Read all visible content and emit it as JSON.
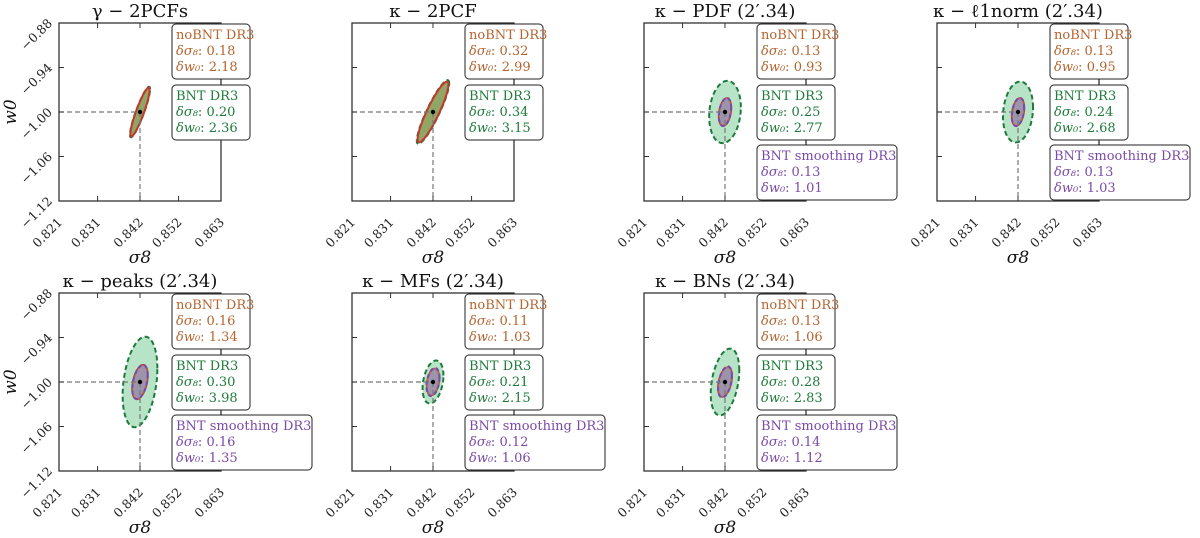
{
  "chart_data": {
    "type": "scatter",
    "subtype": "confidence-ellipses",
    "xlabel": "σ8",
    "ylabel": "w0",
    "xlim": [
      0.821,
      0.863
    ],
    "ylim": [
      -1.12,
      -0.88
    ],
    "xticks": [
      "0.821",
      "0.831",
      "0.842",
      "0.852",
      "0.863"
    ],
    "xtick_values": [
      0.821,
      0.831,
      0.842,
      0.852,
      0.863
    ],
    "yticks": [
      "−1.12",
      "−1.06",
      "−1.00",
      "−0.94",
      "−0.88"
    ],
    "ytick_values": [
      -1.12,
      -1.06,
      -1.0,
      -0.94,
      -0.88
    ],
    "fiducial": {
      "sigma8": 0.842,
      "w0": -1.0
    },
    "sigma_label": "δσ₈",
    "w0_label": "δw₀",
    "colors": {
      "noBNT": "#b5642f",
      "noBNT_edge": "#c0392b",
      "BNT": "#1e7b3c",
      "BNT_fill": "#9fd9b4",
      "smoothing": "#7a4aa8",
      "smoothing_fill": "#9b8fa8",
      "fiducial": "#777777"
    },
    "series_names": {
      "noBNT": "noBNT DR3",
      "BNT": "BNT DR3",
      "smoothing": "BNT smoothing DR3"
    },
    "panels": [
      {
        "title": "γ − 2PCFs",
        "entries": [
          {
            "key": "noBNT",
            "dsigma8": "0.18",
            "dw0": "2.18",
            "half_sigma8": 0.0025,
            "half_w0": 0.033,
            "rho": 0.9
          },
          {
            "key": "BNT",
            "dsigma8": "0.20",
            "dw0": "2.36",
            "half_sigma8": 0.0026,
            "half_w0": 0.034,
            "rho": 0.9
          }
        ]
      },
      {
        "title": "κ − 2PCF",
        "entries": [
          {
            "key": "noBNT",
            "dsigma8": "0.32",
            "dw0": "2.99",
            "half_sigma8": 0.004,
            "half_w0": 0.041,
            "rho": 0.9
          },
          {
            "key": "BNT",
            "dsigma8": "0.34",
            "dw0": "3.15",
            "half_sigma8": 0.0042,
            "half_w0": 0.043,
            "rho": 0.9
          }
        ]
      },
      {
        "title": "κ − PDF (2′.34)",
        "entries": [
          {
            "key": "BNT",
            "dsigma8": "0.25",
            "dw0": "2.77",
            "half_sigma8": 0.0041,
            "half_w0": 0.042,
            "rho": 0.15
          },
          {
            "key": "noBNT",
            "dsigma8": "0.13",
            "dw0": "0.93",
            "half_sigma8": 0.0016,
            "half_w0": 0.0185,
            "rho": 0.3
          },
          {
            "key": "smoothing",
            "dsigma8": "0.13",
            "dw0": "1.01",
            "half_sigma8": 0.0016,
            "half_w0": 0.019,
            "rho": 0.3
          }
        ]
      },
      {
        "title": "κ − ℓ1norm (2′.34)",
        "entries": [
          {
            "key": "BNT",
            "dsigma8": "0.24",
            "dw0": "2.68",
            "half_sigma8": 0.0039,
            "half_w0": 0.041,
            "rho": 0.15
          },
          {
            "key": "noBNT",
            "dsigma8": "0.13",
            "dw0": "0.95",
            "half_sigma8": 0.0016,
            "half_w0": 0.0185,
            "rho": 0.3
          },
          {
            "key": "smoothing",
            "dsigma8": "0.13",
            "dw0": "1.03",
            "half_sigma8": 0.0016,
            "half_w0": 0.019,
            "rho": 0.3
          }
        ]
      },
      {
        "title": "κ − peaks (2′.34)",
        "entries": [
          {
            "key": "BNT",
            "dsigma8": "0.30",
            "dw0": "3.98",
            "half_sigma8": 0.0045,
            "half_w0": 0.061,
            "rho": 0.3
          },
          {
            "key": "noBNT",
            "dsigma8": "0.16",
            "dw0": "1.34",
            "half_sigma8": 0.002,
            "half_w0": 0.023,
            "rho": 0.4
          },
          {
            "key": "smoothing",
            "dsigma8": "0.16",
            "dw0": "1.35",
            "half_sigma8": 0.002,
            "half_w0": 0.023,
            "rho": 0.4
          }
        ]
      },
      {
        "title": "κ − MFs (2′.34)",
        "entries": [
          {
            "key": "BNT",
            "dsigma8": "0.21",
            "dw0": "2.15",
            "half_sigma8": 0.0027,
            "half_w0": 0.029,
            "rho": 0.3
          },
          {
            "key": "noBNT",
            "dsigma8": "0.11",
            "dw0": "1.03",
            "half_sigma8": 0.0016,
            "half_w0": 0.018,
            "rho": 0.3
          },
          {
            "key": "smoothing",
            "dsigma8": "0.12",
            "dw0": "1.06",
            "half_sigma8": 0.0017,
            "half_w0": 0.019,
            "rho": 0.3
          }
        ]
      },
      {
        "title": "κ − BNs (2′.34)",
        "entries": [
          {
            "key": "BNT",
            "dsigma8": "0.28",
            "dw0": "2.83",
            "half_sigma8": 0.0037,
            "half_w0": 0.045,
            "rho": 0.35
          },
          {
            "key": "noBNT",
            "dsigma8": "0.13",
            "dw0": "1.06",
            "half_sigma8": 0.0018,
            "half_w0": 0.02,
            "rho": 0.4
          },
          {
            "key": "smoothing",
            "dsigma8": "0.14",
            "dw0": "1.12",
            "half_sigma8": 0.0018,
            "half_w0": 0.021,
            "rho": 0.4
          }
        ]
      }
    ]
  }
}
